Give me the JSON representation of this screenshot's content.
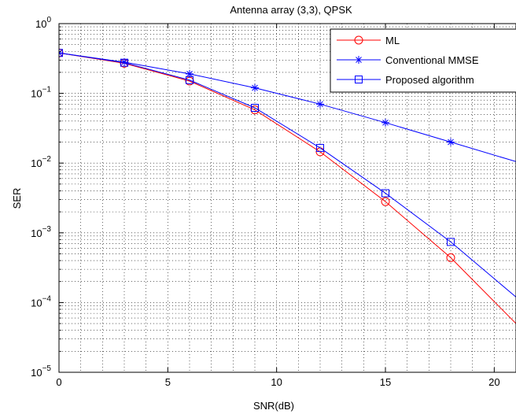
{
  "chart_data": {
    "type": "line",
    "title": "Antenna array (3,3), QPSK",
    "xlabel": "SNR(dB)",
    "ylabel": "SER",
    "xlim": [
      0,
      21
    ],
    "ylim_log10": [
      -5,
      0
    ],
    "y_scale": "log",
    "grid": true,
    "legend_position": "top-right",
    "x_ticks": [
      0,
      5,
      10,
      15,
      20
    ],
    "x_tick_labels": [
      "0",
      "5",
      "10",
      "15",
      "20"
    ],
    "y_tick_exponents": [
      0,
      -1,
      -2,
      -3,
      -4,
      -5
    ],
    "y_tick_base": "10",
    "series": [
      {
        "name": "ML",
        "color": "#ff0000",
        "marker": "circle",
        "x": [
          0,
          3,
          6,
          9,
          12,
          15,
          18,
          21
        ],
        "y": [
          0.38,
          0.27,
          0.15,
          0.058,
          0.0145,
          0.0028,
          0.00044,
          5e-05
        ],
        "marker_x": [
          0,
          3,
          6,
          9,
          12,
          15,
          18
        ]
      },
      {
        "name": "Conventional MMSE",
        "color": "#0000ff",
        "marker": "star",
        "x": [
          0,
          3,
          6,
          9,
          12,
          15,
          18,
          21
        ],
        "y": [
          0.38,
          0.28,
          0.19,
          0.12,
          0.07,
          0.038,
          0.02,
          0.0105
        ],
        "marker_x": [
          0,
          3,
          6,
          9,
          12,
          15,
          18
        ]
      },
      {
        "name": "Proposed algorithm",
        "color": "#0000ff",
        "marker": "square",
        "x": [
          0,
          3,
          6,
          9,
          12,
          15,
          18,
          21
        ],
        "y": [
          0.38,
          0.275,
          0.155,
          0.062,
          0.0165,
          0.0037,
          0.00074,
          0.00012
        ],
        "marker_x": [
          0,
          3,
          6,
          9,
          12,
          15,
          18
        ]
      }
    ]
  }
}
